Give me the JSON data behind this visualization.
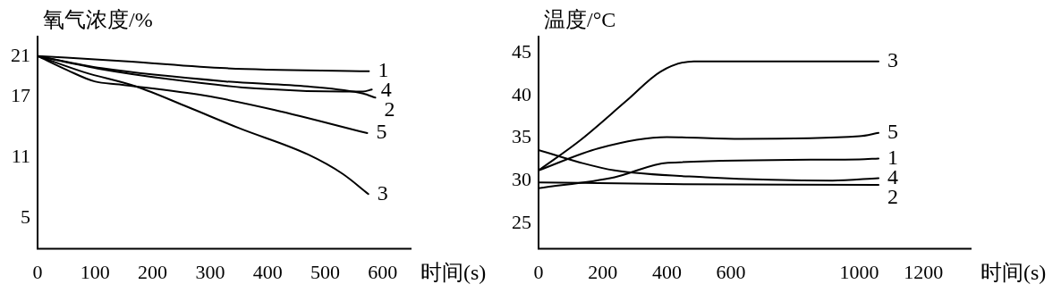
{
  "chart_data": [
    {
      "type": "line",
      "ylabel": "氧气浓度/%",
      "xlabel": "时间(s)",
      "xlim": [
        0,
        650
      ],
      "xticks": [
        0,
        100,
        200,
        300,
        400,
        500,
        600
      ],
      "ylim": [
        2,
        23
      ],
      "yticks": [
        21,
        17,
        11,
        5
      ],
      "grid": false,
      "legend": false,
      "marker": "none",
      "line_style": "solid",
      "series": [
        {
          "name": "1",
          "color": "#000000",
          "x": [
            0,
            150,
            327,
            576
          ],
          "values": [
            21,
            20.5,
            19.8,
            19.5
          ]
        },
        {
          "name": "2",
          "color": "#000000",
          "x": [
            0,
            111,
            327,
            470,
            566,
            587
          ],
          "values": [
            21,
            19.8,
            18.5,
            18.0,
            17.3,
            16.9
          ]
        },
        {
          "name": "3",
          "color": "#000000",
          "x": [
            0,
            81,
            171,
            260,
            350,
            470,
            530,
            575
          ],
          "values": [
            21,
            19.4,
            18.0,
            16.0,
            13.9,
            11.3,
            9.4,
            7.4
          ]
        },
        {
          "name": "4",
          "color": "#000000",
          "x": [
            0,
            111,
            231,
            380,
            530,
            566,
            581
          ],
          "values": [
            21,
            19.7,
            18.7,
            17.8,
            17.5,
            17.5,
            17.7
          ]
        },
        {
          "name": "5",
          "color": "#000000",
          "x": [
            0,
            52,
            99,
            142,
            291,
            411,
            573
          ],
          "values": [
            21,
            19.6,
            18.5,
            18.2,
            17.1,
            15.7,
            13.4
          ]
        }
      ]
    },
    {
      "type": "line",
      "ylabel": "温度/°C",
      "xlabel": "时间(s)",
      "xlim": [
        0,
        1350
      ],
      "xticks": [
        0,
        200,
        400,
        600,
        1000,
        1200
      ],
      "ylim": [
        22,
        47
      ],
      "yticks": [
        45,
        40,
        35,
        30,
        25
      ],
      "grid": false,
      "legend": false,
      "marker": "none",
      "line_style": "solid",
      "series": [
        {
          "name": "3",
          "color": "#000000",
          "x": [
            0,
            132,
            275,
            381,
            484,
            1060
          ],
          "values": [
            31.2,
            34.8,
            39.4,
            42.8,
            44.0,
            44.0
          ]
        },
        {
          "name": "5",
          "color": "#000000",
          "x": [
            0,
            188,
            400,
            632,
            1000,
            1060
          ],
          "values": [
            31.2,
            33.8,
            35.1,
            34.9,
            35.2,
            35.6
          ]
        },
        {
          "name": "1",
          "color": "#000000",
          "x": [
            0,
            237,
            403,
            1000,
            1060
          ],
          "values": [
            29.1,
            30.4,
            32.1,
            32.5,
            32.6
          ]
        },
        {
          "name": "4",
          "color": "#000000",
          "x": [
            0,
            132,
            237,
            521,
            916,
            1060
          ],
          "values": [
            33.6,
            32.1,
            31.2,
            30.4,
            30.0,
            30.3
          ]
        },
        {
          "name": "2",
          "color": "#000000",
          "x": [
            0,
            403,
            1060
          ],
          "values": [
            29.8,
            29.6,
            29.5
          ]
        }
      ]
    }
  ]
}
